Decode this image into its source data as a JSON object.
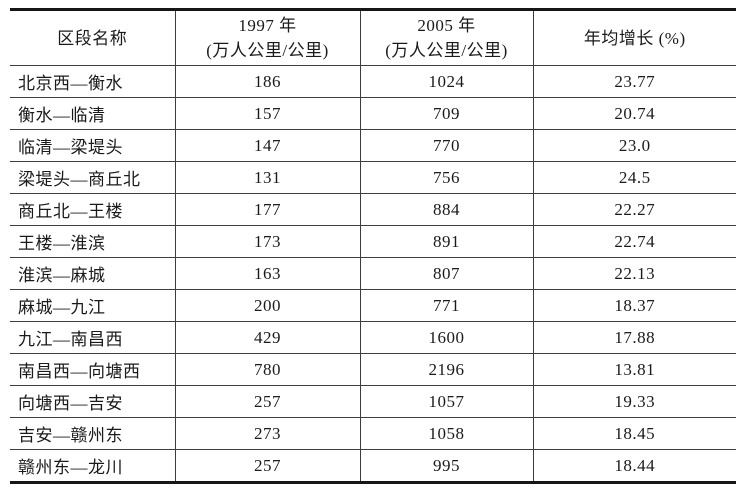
{
  "table": {
    "header": {
      "section": "区段名称",
      "y1997_line1": "1997 年",
      "y1997_line2": "(万人公里/公里)",
      "y2005_line1": "2005 年",
      "y2005_line2": "(万人公里/公里)",
      "growth": "年均增长 (%)"
    },
    "rows": [
      {
        "section": "北京西—衡水",
        "v1997": "186",
        "v2005": "1024",
        "growth": "23.77"
      },
      {
        "section": "衡水—临清",
        "v1997": "157",
        "v2005": "709",
        "growth": "20.74"
      },
      {
        "section": "临清—梁堤头",
        "v1997": "147",
        "v2005": "770",
        "growth": "23.0"
      },
      {
        "section": "梁堤头—商丘北",
        "v1997": "131",
        "v2005": "756",
        "growth": "24.5"
      },
      {
        "section": "商丘北—王楼",
        "v1997": "177",
        "v2005": "884",
        "growth": "22.27"
      },
      {
        "section": "王楼—淮滨",
        "v1997": "173",
        "v2005": "891",
        "growth": "22.74"
      },
      {
        "section": "淮滨—麻城",
        "v1997": "163",
        "v2005": "807",
        "growth": "22.13"
      },
      {
        "section": "麻城—九江",
        "v1997": "200",
        "v2005": "771",
        "growth": "18.37"
      },
      {
        "section": "九江—南昌西",
        "v1997": "429",
        "v2005": "1600",
        "growth": "17.88"
      },
      {
        "section": "南昌西—向塘西",
        "v1997": "780",
        "v2005": "2196",
        "growth": "13.81"
      },
      {
        "section": "向塘西—吉安",
        "v1997": "257",
        "v2005": "1057",
        "growth": "19.33"
      },
      {
        "section": "吉安—赣州东",
        "v1997": "273",
        "v2005": "1058",
        "growth": "18.45"
      },
      {
        "section": "赣州东—龙川",
        "v1997": "257",
        "v2005": "995",
        "growth": "18.44"
      }
    ]
  },
  "colors": {
    "background": "#ffffff",
    "text": "#1a1a1a",
    "thick_rule": "#161616",
    "thin_rule": "#3d3d3d"
  }
}
